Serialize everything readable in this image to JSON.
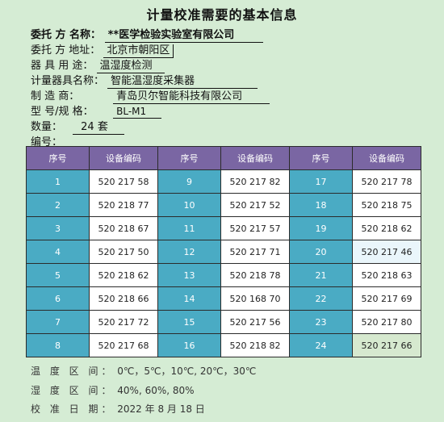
{
  "title": "计量校准需要的基本信息",
  "info": {
    "client_label": "委托 方 名称：",
    "client_value": "**医学检验实验室有限公司",
    "address_label": "委托 方 地址：",
    "address_value": "北京市朝阳区",
    "purpose_label": "器 具  用 途：",
    "purpose_value": "温湿度检测",
    "instrument_label": "计量器具名称：",
    "instrument_value": "智能温湿度采集器",
    "maker_label": "制    造    商：",
    "maker_value": "青岛贝尔智能科技有限公司",
    "model_label": "型    号/规 格：",
    "model_value": "BL-M1",
    "qty_label": "数量：",
    "qty_value": "24  套",
    "serial_label": "编号："
  },
  "table": {
    "headers": [
      "序号",
      "设备编码",
      "序号",
      "设备编码",
      "序号",
      "设备编码"
    ],
    "rows": [
      [
        "1",
        "520 217 58",
        "9",
        "520 217 82",
        "17",
        "520 217 78"
      ],
      [
        "2",
        "520 218 77",
        "10",
        "520 217 52",
        "18",
        "520 218 75"
      ],
      [
        "3",
        "520 218 67",
        "11",
        "520 217 57",
        "19",
        "520 218 62"
      ],
      [
        "4",
        "520 217 50",
        "12",
        "520 217 71",
        "20",
        "520 217 46"
      ],
      [
        "5",
        "520 218 62",
        "13",
        "520 218 78",
        "21",
        "520 218 63"
      ],
      [
        "6",
        "520 218 66",
        "14",
        "520 168 70",
        "22",
        "520 217 69"
      ],
      [
        "7",
        "520 217 72",
        "15",
        "520 217 56",
        "23",
        "520 217 80"
      ],
      [
        "8",
        "520 217 68",
        "16",
        "520 218 82",
        "24",
        "520 217 66"
      ]
    ]
  },
  "footer": {
    "temp_label": "温 度 区 间：",
    "temp_value": "0℃，5℃，10℃, 20℃，30℃",
    "hum_label": "湿 度 区 间：",
    "hum_value": "40%, 60%, 80%",
    "date_label": "校 准 日 期：",
    "date_value": "2022 年 8 月 18 日"
  }
}
